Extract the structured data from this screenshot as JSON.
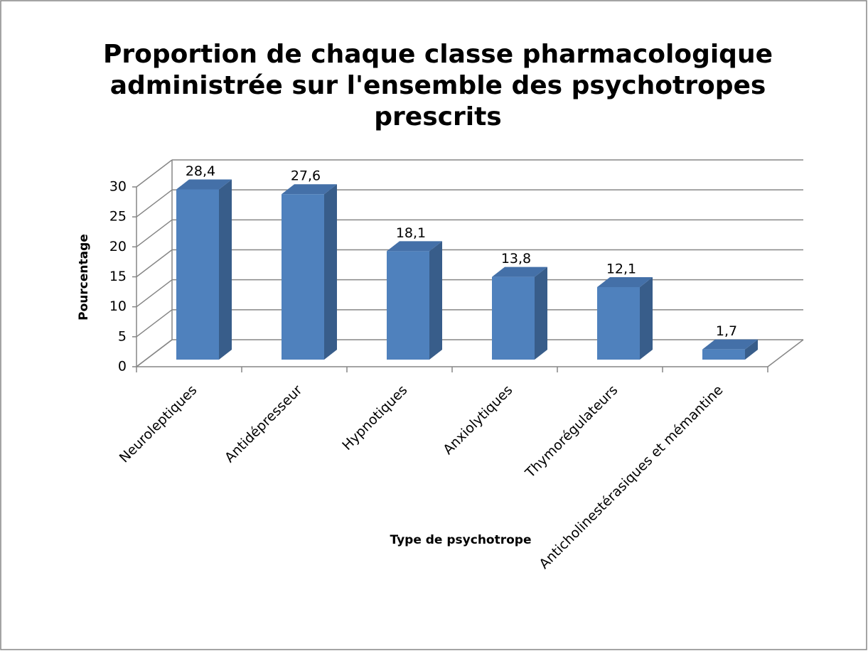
{
  "chart_data": {
    "type": "bar3d",
    "title": [
      "Proportion de chaque classe pharmacologique",
      "administrée  sur l'ensemble des psychotropes",
      "prescrits"
    ],
    "categories": [
      "Neuroleptiques",
      "Antidépresseur",
      "Hypnotiques",
      "Anxiolytiques",
      "Thymorégulateurs",
      "Anticholinestérasiques et mémantine"
    ],
    "values": [
      28.4,
      27.6,
      18.1,
      13.8,
      12.1,
      1.7
    ],
    "value_labels": [
      "28,4",
      "27,6",
      "18,1",
      "13,8",
      "12,1",
      "1,7"
    ],
    "color": "#4f81bd",
    "ylim": [
      0,
      30
    ],
    "yticks": [
      0,
      5,
      10,
      15,
      20,
      25,
      30
    ],
    "grid": true,
    "ylabel": "Pourcentage",
    "xlabel": "Type de psychotrope"
  }
}
